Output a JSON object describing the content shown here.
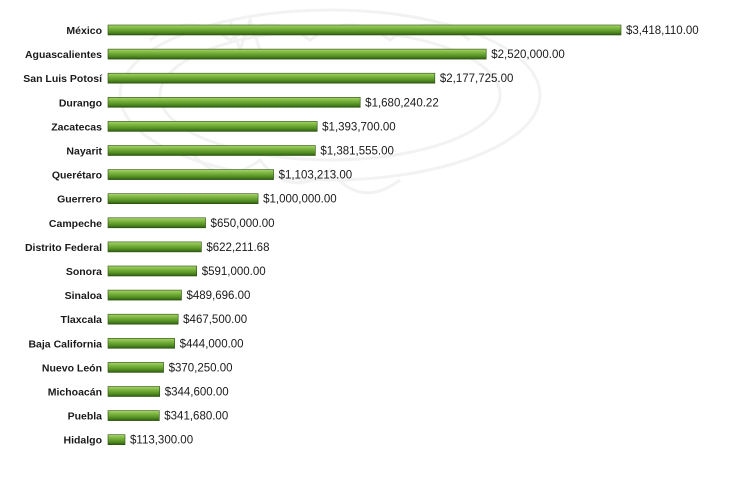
{
  "chart_data": {
    "type": "bar",
    "orientation": "horizontal",
    "categories": [
      "México",
      "Aguascalientes",
      "San Luis Potosí",
      "Durango",
      "Zacatecas",
      "Nayarit",
      "Querétaro",
      "Guerrero",
      "Campeche",
      "Distrito Federal",
      "Sonora",
      "Sinaloa",
      "Tlaxcala",
      "Baja California",
      "Nuevo León",
      "Michoacán",
      "Puebla",
      "Hidalgo"
    ],
    "values": [
      3418110.0,
      2520000.0,
      2177725.0,
      1680240.22,
      1393700.0,
      1381555.0,
      1103213.0,
      1000000.0,
      650000.0,
      622211.68,
      591000.0,
      489696.0,
      467500.0,
      444000.0,
      370250.0,
      344600.0,
      341680.0,
      113300.0
    ],
    "value_labels": [
      "$3,418,110.00",
      "$2,520,000.00",
      "$2,177,725.00",
      "$1,680,240.22",
      "$1,393,700.00",
      "$1,381,555.00",
      "$1,103,213.00",
      "$1,000,000.00",
      "$650,000.00",
      "$622,211.68",
      "$591,000.00",
      "$489,696.00",
      "$467,500.00",
      "$444,000.00",
      "$370,250.00",
      "$344,600.00",
      "$341,680.00",
      "$113,300.00"
    ],
    "title": "",
    "xlabel": "",
    "ylabel": "",
    "xlim": [
      0,
      3418110
    ],
    "grid": false,
    "legend": "none",
    "colors": {
      "bar_light": "#8cc34a",
      "bar_mid": "#5e9a2a",
      "bar_dark": "#2f5a12",
      "bar_edge": "#2a4f10"
    }
  }
}
